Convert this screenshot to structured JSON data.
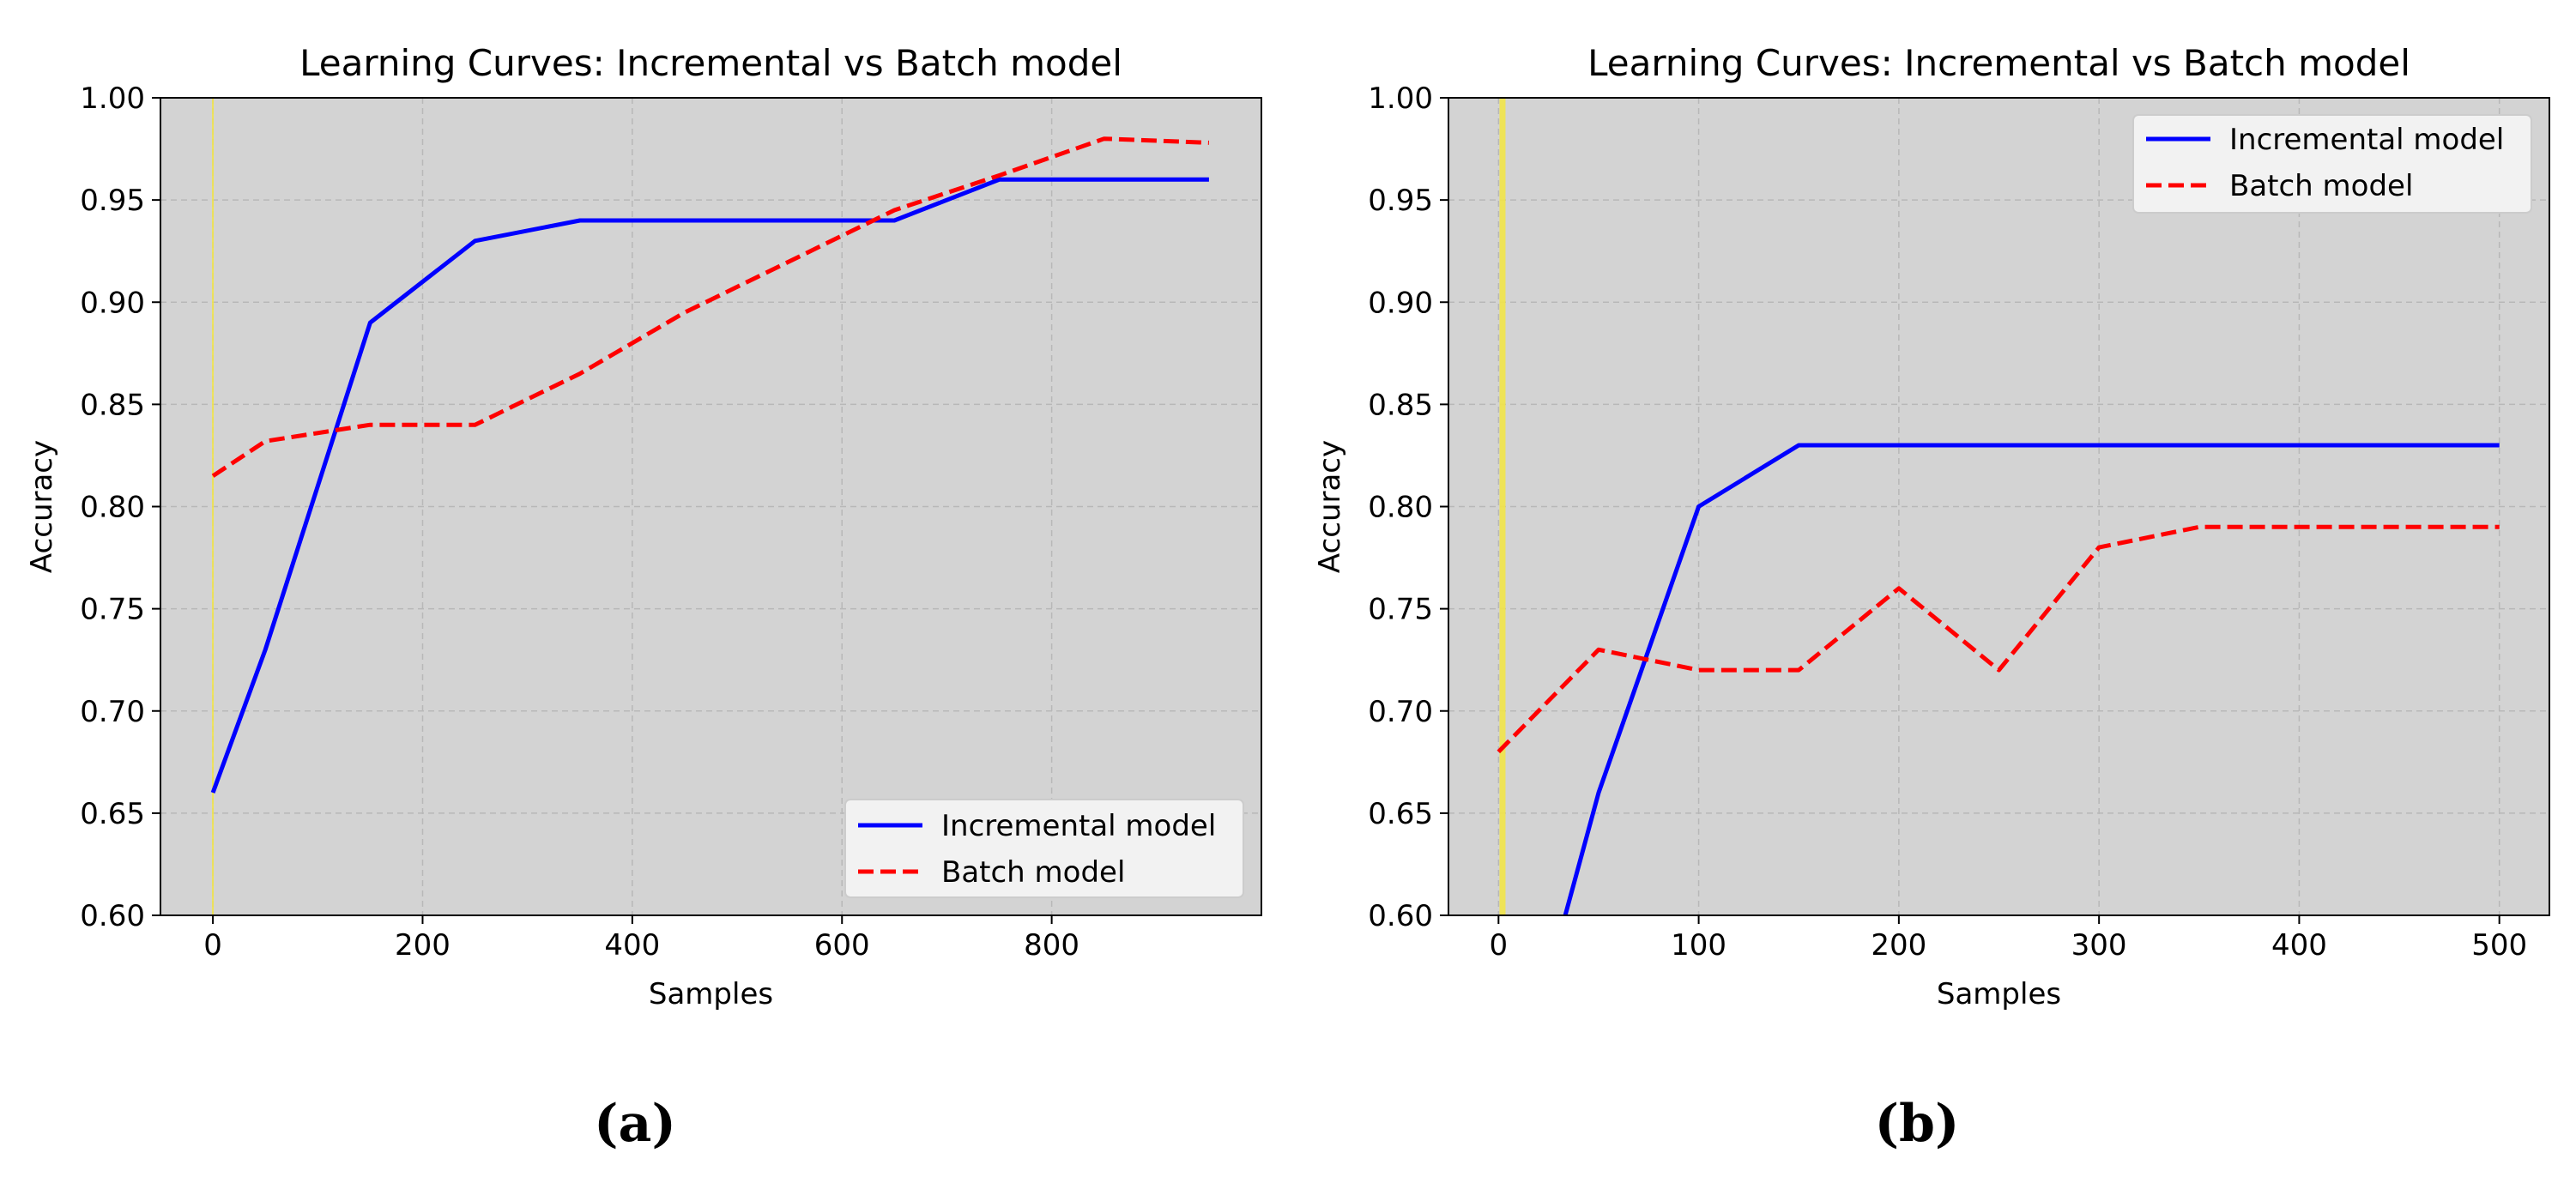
{
  "figure": {
    "panels": [
      {
        "caption": "(a)"
      },
      {
        "caption": "(b)"
      }
    ]
  },
  "colors": {
    "plot_background": "#d3d3d3",
    "grid": "#b8b8b8",
    "incremental_line": "#0000ff",
    "batch_line": "#ff0000",
    "marker_line": "#f2e54a"
  },
  "chart_data": [
    {
      "type": "line",
      "title": "Learning Curves: Incremental vs Batch model",
      "xlabel": "Samples",
      "ylabel": "Accuracy",
      "xlim": [
        -50,
        1000
      ],
      "ylim": [
        0.6,
        1.0
      ],
      "xticks": [
        0,
        200,
        400,
        600,
        800
      ],
      "yticks": [
        0.6,
        0.65,
        0.7,
        0.75,
        0.8,
        0.85,
        0.9,
        0.95,
        1.0
      ],
      "grid": true,
      "grid_style": "dashed",
      "legend_position": "lower-right",
      "vertical_marker_x": 0,
      "series": [
        {
          "name": "Incremental model",
          "style": "solid",
          "color": "#0000ff",
          "x": [
            0,
            50,
            150,
            250,
            350,
            450,
            550,
            650,
            750,
            850,
            950
          ],
          "y": [
            0.66,
            0.73,
            0.89,
            0.93,
            0.94,
            0.94,
            0.94,
            0.94,
            0.96,
            0.96,
            0.96
          ]
        },
        {
          "name": "Batch model",
          "style": "dashed",
          "color": "#ff0000",
          "x": [
            0,
            50,
            150,
            250,
            350,
            450,
            550,
            650,
            750,
            850,
            950
          ],
          "y": [
            0.815,
            0.832,
            0.84,
            0.84,
            0.865,
            0.895,
            0.92,
            0.945,
            0.962,
            0.98,
            0.978
          ]
        }
      ]
    },
    {
      "type": "line",
      "title": "Learning Curves: Incremental vs Batch model",
      "xlabel": "Samples",
      "ylabel": "Accuracy",
      "xlim": [
        -25,
        525
      ],
      "ylim": [
        0.6,
        1.0
      ],
      "xticks": [
        0,
        100,
        200,
        300,
        400,
        500
      ],
      "yticks": [
        0.6,
        0.65,
        0.7,
        0.75,
        0.8,
        0.85,
        0.9,
        0.95,
        1.0
      ],
      "grid": true,
      "grid_style": "dashed",
      "legend_position": "upper-right",
      "vertical_marker_x": 2,
      "series": [
        {
          "name": "Incremental model",
          "style": "solid",
          "color": "#0000ff",
          "x": [
            0,
            50,
            100,
            150,
            200,
            250,
            300,
            350,
            400,
            450,
            500
          ],
          "y": [
            0.48,
            0.66,
            0.8,
            0.83,
            0.83,
            0.83,
            0.83,
            0.83,
            0.83,
            0.83,
            0.83
          ]
        },
        {
          "name": "Batch model",
          "style": "dashed",
          "color": "#ff0000",
          "x": [
            0,
            50,
            100,
            150,
            200,
            250,
            300,
            350,
            400,
            450,
            500
          ],
          "y": [
            0.68,
            0.73,
            0.72,
            0.72,
            0.76,
            0.72,
            0.78,
            0.79,
            0.79,
            0.79,
            0.79
          ]
        }
      ]
    }
  ]
}
